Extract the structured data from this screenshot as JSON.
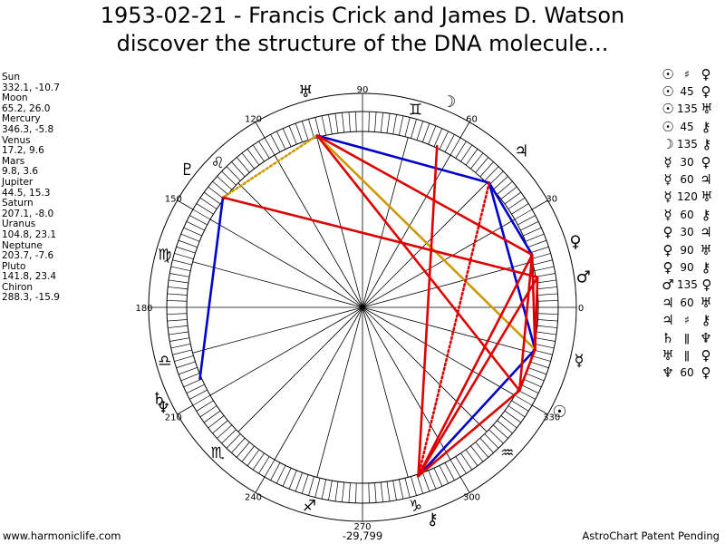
{
  "title": {
    "line1": "1953-02-21 - Francis Crick and James D. Watson",
    "line2": "discover the structure of the DNA molecule..."
  },
  "planets": [
    {
      "name": "Sun",
      "glyph": "☉",
      "lon": 332.1,
      "lat": -10.7,
      "coords": "332.1, -10.7"
    },
    {
      "name": "Moon",
      "glyph": "☽",
      "lon": 65.2,
      "lat": 26.0,
      "coords": "65.2, 26.0"
    },
    {
      "name": "Mercury",
      "glyph": "☿",
      "lon": 346.3,
      "lat": -5.8,
      "coords": "346.3, -5.8"
    },
    {
      "name": "Venus",
      "glyph": "♀",
      "lon": 17.2,
      "lat": 9.6,
      "coords": "17.2, 9.6"
    },
    {
      "name": "Mars",
      "glyph": "♂",
      "lon": 9.8,
      "lat": 3.6,
      "coords": "9.8, 3.6"
    },
    {
      "name": "Jupiter",
      "glyph": "♃",
      "lon": 44.5,
      "lat": 15.3,
      "coords": "44.5, 15.3"
    },
    {
      "name": "Saturn",
      "glyph": "♄",
      "lon": 207.1,
      "lat": -8.0,
      "coords": "207.1, -8.0"
    },
    {
      "name": "Uranus",
      "glyph": "♅",
      "lon": 104.8,
      "lat": 23.1,
      "coords": "104.8, 23.1"
    },
    {
      "name": "Neptune",
      "glyph": "♆",
      "lon": 203.7,
      "lat": -7.6,
      "coords": "203.7, -7.6"
    },
    {
      "name": "Pluto",
      "glyph": "♇",
      "lon": 141.8,
      "lat": 23.4,
      "coords": "141.8, 23.4"
    },
    {
      "name": "Chiron",
      "glyph": "⚷",
      "lon": 288.3,
      "lat": -15.9,
      "coords": "288.3, -15.9"
    }
  ],
  "aspect_list": [
    {
      "p1": "☉",
      "aspect": "♯",
      "p2": "♀"
    },
    {
      "p1": "☉",
      "aspect": "45",
      "p2": "♀"
    },
    {
      "p1": "☉",
      "aspect": "135",
      "p2": "♅"
    },
    {
      "p1": "☉",
      "aspect": "45",
      "p2": "⚷"
    },
    {
      "p1": "☽",
      "aspect": "135",
      "p2": "⚷"
    },
    {
      "p1": "☿",
      "aspect": "30",
      "p2": "♀"
    },
    {
      "p1": "☿",
      "aspect": "60",
      "p2": "♃"
    },
    {
      "p1": "☿",
      "aspect": "120",
      "p2": "♅"
    },
    {
      "p1": "☿",
      "aspect": "60",
      "p2": "⚷"
    },
    {
      "p1": "♀",
      "aspect": "30",
      "p2": "♃"
    },
    {
      "p1": "♀",
      "aspect": "90",
      "p2": "♅"
    },
    {
      "p1": "♀",
      "aspect": "90",
      "p2": "⚷"
    },
    {
      "p1": "♂",
      "aspect": "135",
      "p2": "♀"
    },
    {
      "p1": "♃",
      "aspect": "60",
      "p2": "♅"
    },
    {
      "p1": "♃",
      "aspect": "♯",
      "p2": "⚷"
    },
    {
      "p1": "♄",
      "aspect": "ǁ",
      "p2": "♆"
    },
    {
      "p1": "♅",
      "aspect": "ǁ",
      "p2": "♀"
    },
    {
      "p1": "♆",
      "aspect": "60",
      "p2": "♀"
    }
  ],
  "degree_labels": [
    {
      "deg": 0,
      "text": "0"
    },
    {
      "deg": 30,
      "text": "30"
    },
    {
      "deg": 60,
      "text": "60"
    },
    {
      "deg": 90,
      "text": "90"
    },
    {
      "deg": 120,
      "text": "120"
    },
    {
      "deg": 150,
      "text": "150"
    },
    {
      "deg": 180,
      "text": "180"
    },
    {
      "deg": 210,
      "text": "210"
    },
    {
      "deg": 240,
      "text": "240"
    },
    {
      "deg": 270,
      "text": "270"
    },
    {
      "deg": 300,
      "text": "300"
    },
    {
      "deg": 330,
      "text": "330"
    }
  ],
  "signs": [
    {
      "deg": 75,
      "glyph": "♊"
    },
    {
      "deg": 135,
      "glyph": "♌"
    },
    {
      "deg": 165,
      "glyph": "♍"
    },
    {
      "deg": 195,
      "glyph": "♎"
    },
    {
      "deg": 225,
      "glyph": "♏"
    },
    {
      "deg": 255,
      "glyph": "♐"
    },
    {
      "deg": 285,
      "glyph": "♑"
    },
    {
      "deg": 315,
      "glyph": "♒"
    }
  ],
  "aspect_lines": [
    {
      "from": "Uranus",
      "to": "Jupiter",
      "color": "#0000cc",
      "style": "solid"
    },
    {
      "from": "Jupiter",
      "to": "Venus",
      "color": "#0000cc",
      "style": "solid"
    },
    {
      "from": "Jupiter",
      "to": "Mercury",
      "color": "#0000cc",
      "style": "solid"
    },
    {
      "from": "Chiron",
      "to": "Mercury",
      "color": "#0000cc",
      "style": "solid"
    },
    {
      "from": "Neptune",
      "to": "Pluto",
      "color": "#0000cc",
      "style": "solid"
    },
    {
      "from": "Uranus",
      "to": "Mercury",
      "color": "#cc9900",
      "style": "solid"
    },
    {
      "from": "Uranus",
      "to": "Pluto",
      "color": "#cc9900",
      "style": "dotted"
    },
    {
      "from": "Uranus",
      "to": "Venus",
      "color": "#dd0000",
      "style": "solid"
    },
    {
      "from": "Uranus",
      "to": "Sun",
      "color": "#dd0000",
      "style": "solid"
    },
    {
      "from": "Pluto",
      "to": "Mars",
      "color": "#dd0000",
      "style": "solid"
    },
    {
      "from": "Moon",
      "to": "Chiron",
      "color": "#dd0000",
      "style": "solid"
    },
    {
      "from": "Jupiter",
      "to": "Chiron",
      "color": "#dd0000",
      "style": "dotted"
    },
    {
      "from": "Venus",
      "to": "Chiron",
      "color": "#dd0000",
      "style": "solid"
    },
    {
      "from": "Venus",
      "to": "Sun",
      "color": "#dd0000",
      "style": "solid"
    },
    {
      "from": "Mars",
      "to": "Chiron",
      "color": "#dd0000",
      "style": "solid"
    },
    {
      "from": "Chiron",
      "to": "Sun",
      "color": "#dd0000",
      "style": "solid"
    },
    {
      "from": "Venus",
      "to": "Mercury",
      "color": "#dd0000",
      "style": "solid"
    },
    {
      "from": "Mars",
      "to": "Mercury",
      "color": "#dd0000",
      "style": "solid"
    },
    {
      "from": "Sun",
      "to": "Mercury",
      "color": "#dd0000",
      "style": "solid"
    }
  ],
  "footer": {
    "left": "www.harmoniclife.com",
    "center": "-29,799",
    "right": "AstroChart Patent Pending"
  }
}
